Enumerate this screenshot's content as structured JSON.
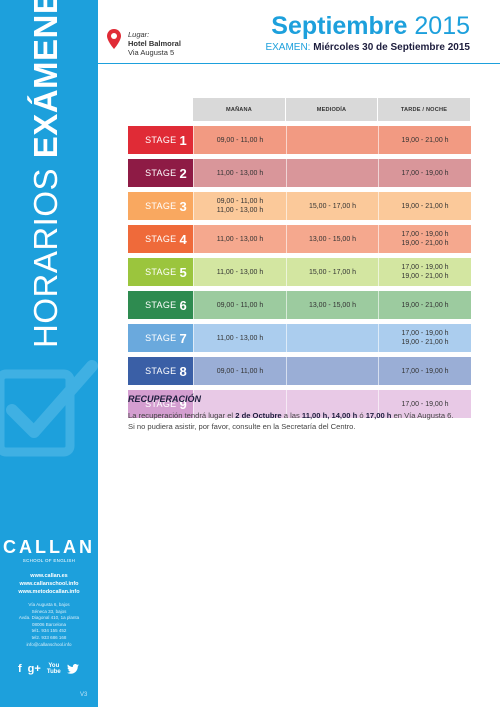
{
  "sidebar": {
    "vertical_title_light": "HORARIOS ",
    "vertical_title_bold": "EXÁMENES",
    "logo_text": "CALLAN",
    "logo_sub": "SCHOOL OF ENGLISH",
    "links": [
      "www.callan.es",
      "www.callanschool.info",
      "www.metodocallan.info"
    ],
    "address_lines": [
      "Vía Augusta 6, bajos",
      "Séneca 33, bajos",
      "Avda. Diagonal 410, 1a planta",
      "08006 Barcelona",
      "tel1. 934 155 452",
      "tel2. 933 686 168",
      "info@callanschool.info"
    ],
    "social": [
      "f",
      "g+",
      "You Tube",
      "twitter"
    ],
    "version": "V3"
  },
  "header": {
    "lugar_label": "Lugar:",
    "hotel": "Hotel Balmoral",
    "address": "Via Augusta 5",
    "title_month": "Septiembre",
    "title_year": " 2015",
    "exam_label": "EXAMEN:",
    "exam_date": " Miércoles 30 de Septiembre 2015"
  },
  "table": {
    "columns": [
      "MAÑANA",
      "MEDIODÍA",
      "TARDE / NOCHE"
    ],
    "rows": [
      {
        "label": "STAGE",
        "num": "1",
        "color": "#e02b36",
        "bg": "#f29a82",
        "manana": [
          "09,00 - 11,00 h"
        ],
        "mediodia": [],
        "tarde": [
          "19,00 - 21,00 h"
        ]
      },
      {
        "label": "STAGE",
        "num": "2",
        "color": "#8e1b45",
        "bg": "#d9969a",
        "manana": [
          "11,00 - 13,00 h"
        ],
        "mediodia": [],
        "tarde": [
          "17,00 - 19,00 h"
        ]
      },
      {
        "label": "STAGE",
        "num": "3",
        "color": "#f9a860",
        "bg": "#fbc99a",
        "manana": [
          "09,00 - 11,00 h",
          "11,00 - 13,00 h"
        ],
        "mediodia": [
          "15,00 - 17,00 h"
        ],
        "tarde": [
          "19,00 - 21,00 h"
        ]
      },
      {
        "label": "STAGE",
        "num": "4",
        "color": "#ef6a3a",
        "bg": "#f5a88e",
        "manana": [
          "11,00 - 13,00 h"
        ],
        "mediodia": [
          "13,00 - 15,00 h"
        ],
        "tarde": [
          "17,00 - 19,00 h",
          "19,00 - 21,00 h"
        ]
      },
      {
        "label": "STAGE",
        "num": "5",
        "color": "#9bc53d",
        "bg": "#d3e6a1",
        "manana": [
          "11,00 - 13,00 h"
        ],
        "mediodia": [
          "15,00 - 17,00 h"
        ],
        "tarde": [
          "17,00 - 19,00 h",
          "19,00 - 21,00 h"
        ]
      },
      {
        "label": "STAGE",
        "num": "6",
        "color": "#2e8b50",
        "bg": "#9ccb9f",
        "manana": [
          "09,00 - 11,00 h"
        ],
        "mediodia": [
          "13,00 - 15,00 h"
        ],
        "tarde": [
          "19,00 - 21,00 h"
        ]
      },
      {
        "label": "STAGE",
        "num": "7",
        "color": "#6aa9dd",
        "bg": "#abcdee",
        "manana": [
          "11,00 - 13,00 h"
        ],
        "mediodia": [],
        "tarde": [
          "17,00 - 19,00 h",
          "19,00 - 21,00 h"
        ]
      },
      {
        "label": "STAGE",
        "num": "8",
        "color": "#3a5fa6",
        "bg": "#9aaed6",
        "manana": [
          "09,00 - 11,00 h"
        ],
        "mediodia": [],
        "tarde": [
          "17,00 - 19,00 h"
        ]
      },
      {
        "label": "STAGE",
        "num": "9",
        "color": "#d49ed0",
        "bg": "#e8c9e6",
        "manana": [],
        "mediodia": [],
        "tarde": [
          "17,00 - 19,00 h"
        ]
      }
    ]
  },
  "recuperacion": {
    "title": "RECUPERACIÓN",
    "line1_a": "La recuperación tendrá lugar el ",
    "line1_b": "2 de Octubre",
    "line1_c": " a las ",
    "line1_d": "11,00 h, 14,00 h",
    "line1_e": " ó ",
    "line1_f": "17,00 h",
    "line1_g": " en Vía Augusta 6.",
    "line2": "Si no pudiera asistir, por favor, consulte en la Secretaría del Centro."
  }
}
